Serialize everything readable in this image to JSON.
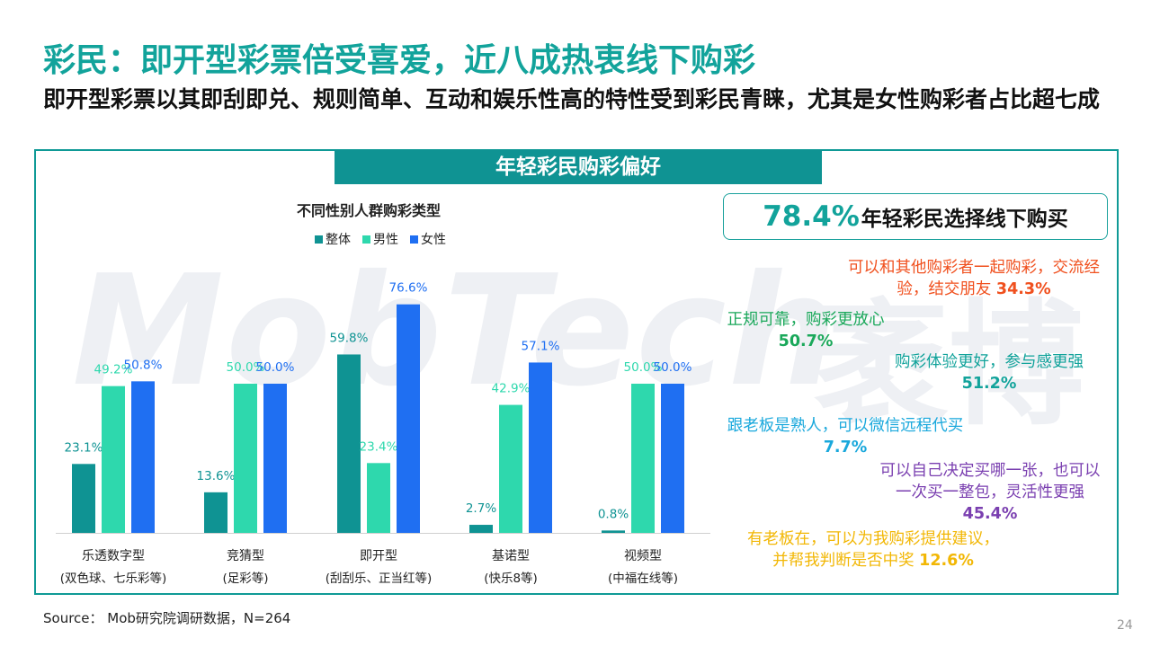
{
  "title": "彩民：即开型彩票倍受喜爱，近八成热衷线下购彩",
  "subtitle": "即开型彩票以其即刮即兑、规则简单、互动和娱乐性高的特性受到彩民青睐，尤其是女性购彩者占比超七成",
  "banner": "年轻彩民购彩偏好",
  "watermark": "MobTech",
  "watermark_cn": "袤博",
  "chart_data": {
    "type": "bar",
    "title": "不同性别人群购彩类型",
    "categories": [
      "乐透数字型",
      "竞猜型",
      "即开型",
      "基诺型",
      "视频型"
    ],
    "category_sublabels": [
      "(双色球、七乐彩等)",
      "(足彩等)",
      "(刮刮乐、正当红等)",
      "(快乐8等)",
      "(中福在线等)"
    ],
    "series": [
      {
        "name": "整体",
        "color": "#0f9393",
        "values": [
          23.1,
          13.6,
          59.8,
          2.7,
          0.8
        ],
        "labels": [
          "23.1%",
          "13.6%",
          "59.8%",
          "2.7%",
          "0.8%"
        ]
      },
      {
        "name": "男性",
        "color": "#2ed8ad",
        "values": [
          49.2,
          50.0,
          23.4,
          42.9,
          50.0
        ],
        "labels": [
          "49.2%",
          "50.0%",
          "23.4%",
          "42.9%",
          "50.0%"
        ]
      },
      {
        "name": "女性",
        "color": "#1f6ff2",
        "values": [
          50.8,
          50.0,
          76.6,
          57.1,
          50.0
        ],
        "labels": [
          "50.8%",
          "50.0%",
          "76.6%",
          "57.1%",
          "50.0%"
        ]
      }
    ],
    "ylim": [
      0,
      100
    ],
    "grid": false,
    "legend": "top-center"
  },
  "kpi": {
    "value": "78.4%",
    "label": "年轻彩民选择线下购买"
  },
  "reasons": [
    {
      "line1": "可以和其他购彩者一起购彩，交流经",
      "line2": "验，结交朋友 ",
      "value": "34.3%",
      "color": "#f0501e"
    },
    {
      "line1": "正规可靠，购彩更放心",
      "value": "50.7%",
      "color": "#1aa85a"
    },
    {
      "line1": "购彩体验更好，参与感更强",
      "value": "51.2%",
      "color": "#12a39b"
    },
    {
      "line1": "跟老板是熟人，可以微信远程代买",
      "value": "7.7%",
      "color": "#19a8dc"
    },
    {
      "line1": "可以自己决定买哪一张，也可以",
      "line2": "一次买一整包，灵活性更强",
      "value": "45.4%",
      "color": "#7a3fb0"
    },
    {
      "line1": "有老板在，可以为我购彩提供建议，",
      "line2": "并帮我判断是否中奖 ",
      "value": "12.6%",
      "color": "#f2b705"
    }
  ],
  "source": "Source：   Mob研究院调研数据，N=264",
  "page_number": "24"
}
